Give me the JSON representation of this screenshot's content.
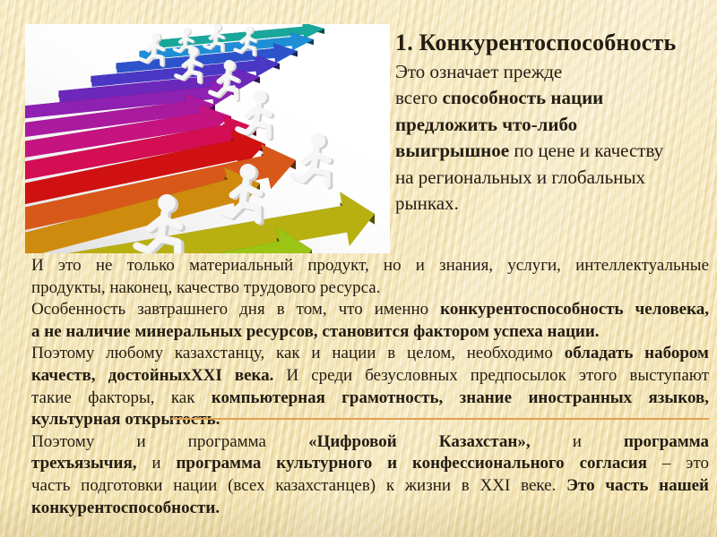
{
  "page": {
    "background": "#f7e9bc",
    "text_color": "#241d12"
  },
  "title": {
    "text": "1. Конкурентоспособность"
  },
  "callout": {
    "lines": [
      {
        "seg": [
          {
            "t": "Это означает прежде"
          }
        ]
      },
      {
        "seg": [
          {
            "t": "всего "
          },
          {
            "t": "способность нации",
            "b": 1
          }
        ]
      },
      {
        "seg": [
          {
            "t": "предложить что-либо",
            "b": 1
          }
        ]
      },
      {
        "seg": [
          {
            "t": "выигрышное",
            "b": 1
          },
          {
            "t": " по цене и качеству"
          }
        ]
      },
      {
        "seg": [
          {
            "t": "на региональных и глобальных"
          }
        ]
      },
      {
        "seg": [
          {
            "t": "рынках."
          }
        ]
      }
    ]
  },
  "body": {
    "lines": [
      {
        "just": 1,
        "seg": [
          {
            "t": "И это не только материальный продукт, но и знания, услуги, интеллектуальные"
          }
        ]
      },
      {
        "just": 0,
        "seg": [
          {
            "t": "продукты, наконец, качество трудового ресурса."
          }
        ]
      },
      {
        "just": 1,
        "seg": [
          {
            "t": "Особенность завтрашнего дня в том, что именно "
          },
          {
            "t": "конкурентоспособность человека,",
            "b": 1
          }
        ]
      },
      {
        "just": 0,
        "seg": [
          {
            "t": "а не наличие минеральных ресурсов, становится фактором успеха нации.",
            "b": 1
          }
        ]
      },
      {
        "just": 1,
        "seg": [
          {
            "t": "Поэтому любому казахстанцу, как и нации в целом, необходимо "
          },
          {
            "t": "обладать набором",
            "b": 1
          }
        ]
      },
      {
        "just": 1,
        "seg": [
          {
            "t": "качеств, достойныхXXI века.",
            "b": 1
          },
          {
            "t": " И среди безусловных предпосылок этого выступают"
          }
        ]
      },
      {
        "just": 1,
        "seg": [
          {
            "t": "такие факторы, как "
          },
          {
            "t": "компьютерная грамотность, знание иностранных языков,",
            "b": 1
          }
        ]
      },
      {
        "just": 0,
        "seg": [
          {
            "t": "культурная открытость.",
            "b": 1
          }
        ]
      },
      {
        "just": 1,
        "seg": [
          {
            "t": "Поэтому и программа "
          },
          {
            "t": "«Цифровой Казахстан»,",
            "b": 1
          },
          {
            "t": " и "
          },
          {
            "t": "программа",
            "b": 1
          }
        ]
      },
      {
        "just": 1,
        "seg": [
          {
            "t": "трехъязычия,",
            "b": 1
          },
          {
            "t": " и "
          },
          {
            "t": "программа культурного и конфессионального согласия",
            "b": 1
          },
          {
            "t": " – это"
          }
        ]
      },
      {
        "just": 1,
        "seg": [
          {
            "t": "часть подготовки нации (всех казахстанцев) к жизни в XXI веке. "
          },
          {
            "t": "Это часть нашей",
            "b": 1
          }
        ]
      },
      {
        "just": 0,
        "seg": [
          {
            "t": "конкурентоспособности.",
            "b": 1
          }
        ]
      }
    ],
    "divider_color": "#e2a050"
  },
  "picture": {
    "description": "colorful 3d arrows with white running figures",
    "background": "#ffffff",
    "arrow_colors": [
      "#18a79a",
      "#1f8ed6",
      "#2d53cb",
      "#4a38c4",
      "#6c28bb",
      "#8e20b2",
      "#aa1a9e",
      "#c51480",
      "#d30e52",
      "#d01111",
      "#d8581a",
      "#cf8b0d",
      "#b8b011",
      "#9bc415",
      "#74c71c",
      "#3ec32a"
    ],
    "figure_color": "#f6f6f6",
    "figure_shadow_color": "#cfcfcf"
  }
}
